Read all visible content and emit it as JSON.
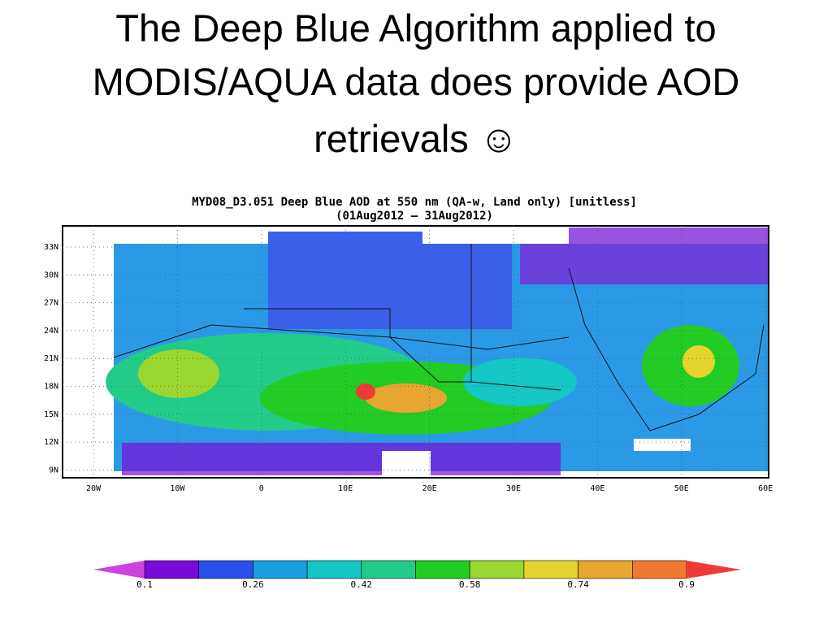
{
  "slide": {
    "title_lines": [
      "The Deep Blue Algorithm applied to",
      "MODIS/AQUA data does provide AOD",
      "retrievals ☺"
    ]
  },
  "map": {
    "title": "MYD08_D3.051 Deep Blue AOD at 550 nm (QA-w, Land only) [unitless]",
    "subtitle": "(01Aug2012 – 31Aug2012)",
    "lat_labels": [
      "33N",
      "30N",
      "27N",
      "24N",
      "21N",
      "18N",
      "15N",
      "12N",
      "9N"
    ],
    "lon_labels": [
      "20W",
      "10W",
      "0",
      "10E",
      "20E",
      "30E",
      "40E",
      "50E",
      "60E"
    ]
  },
  "colorbar": {
    "labels": [
      "0.1",
      "0.26",
      "0.42",
      "0.58",
      "0.74",
      "0.9"
    ],
    "colors": [
      "#cc44dd",
      "#7a0ad8",
      "#2b50ea",
      "#1c9fe2",
      "#14c6c6",
      "#22cc88",
      "#20cc20",
      "#9ad630",
      "#e6d42e",
      "#e6a630",
      "#f07830",
      "#f03a3a"
    ]
  }
}
